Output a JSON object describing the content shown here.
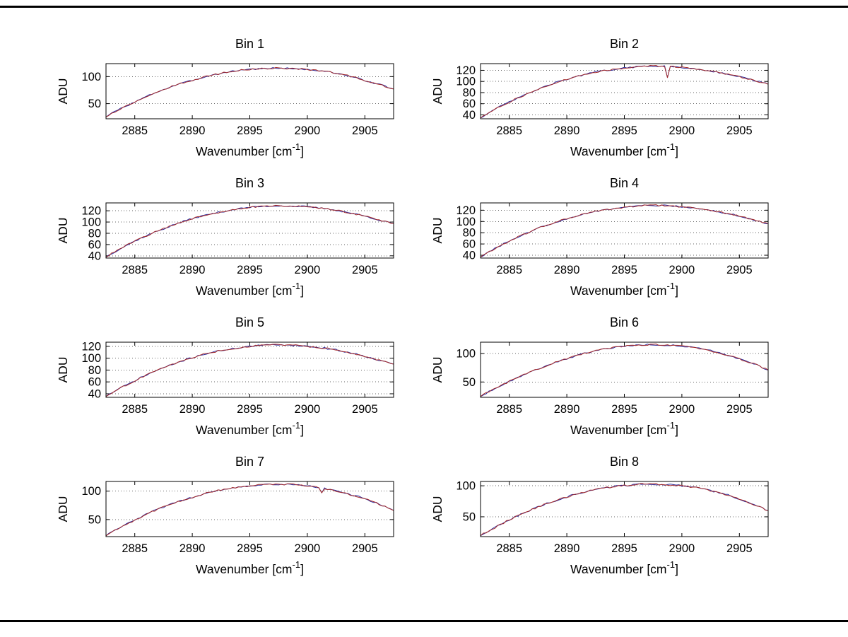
{
  "figure": {
    "background": "#ffffff",
    "frame_color": "#000000"
  },
  "chart_data": [
    {
      "type": "line",
      "title": "Bin 1",
      "ylabel": "ADU",
      "xlabel": {
        "base": "Wavenumber [cm",
        "sup": "-1",
        "end": "]"
      },
      "xlim": [
        2882.5,
        2907.5
      ],
      "xticks": [
        2885,
        2890,
        2895,
        2900,
        2905
      ],
      "ylim": [
        22,
        124
      ],
      "yticks": [
        50,
        100
      ],
      "grid": "dotted-horizontal",
      "legend": "none",
      "x_start": 2882.5,
      "x_step": 1,
      "noise": 1.3,
      "series": [
        {
          "name": "trace-blue",
          "color": "#2a2a9a"
        },
        {
          "name": "trace-red",
          "color": "#a52a2a"
        }
      ],
      "values": [
        26,
        38,
        48,
        58,
        68,
        76,
        84,
        90,
        96,
        102,
        106,
        110,
        113,
        114,
        115,
        116,
        115,
        114,
        112,
        110,
        106,
        102,
        96,
        90,
        84,
        77
      ]
    },
    {
      "type": "line",
      "title": "Bin 2",
      "ylabel": "ADU",
      "xlabel": {
        "base": "Wavenumber [cm",
        "sup": "-1",
        "end": "]"
      },
      "xlim": [
        2882.5,
        2907.5
      ],
      "xticks": [
        2885,
        2890,
        2895,
        2900,
        2905
      ],
      "ylim": [
        33,
        132
      ],
      "yticks": [
        40,
        60,
        80,
        100,
        120
      ],
      "grid": "dotted-horizontal",
      "legend": "none",
      "x_start": 2882.5,
      "x_step": 1,
      "noise": 1.3,
      "artifact": {
        "x": 2898.7,
        "value": 107
      },
      "series": [
        {
          "name": "trace-blue",
          "color": "#2a2a9a"
        },
        {
          "name": "trace-red",
          "color": "#a52a2a"
        }
      ],
      "values": [
        35,
        47,
        58,
        68,
        77,
        86,
        94,
        101,
        107,
        112,
        117,
        120,
        123,
        125,
        127,
        128,
        127,
        126,
        124,
        122,
        119,
        115,
        111,
        106,
        101,
        95
      ]
    },
    {
      "type": "line",
      "title": "Bin 3",
      "ylabel": "ADU",
      "xlabel": {
        "base": "Wavenumber [cm",
        "sup": "-1",
        "end": "]"
      },
      "xlim": [
        2882.5,
        2907.5
      ],
      "xticks": [
        2885,
        2890,
        2895,
        2900,
        2905
      ],
      "ylim": [
        36,
        134
      ],
      "yticks": [
        40,
        60,
        80,
        100,
        120
      ],
      "grid": "dotted-horizontal",
      "legend": "none",
      "x_start": 2882.5,
      "x_step": 1,
      "noise": 1.3,
      "series": [
        {
          "name": "trace-blue",
          "color": "#2a2a9a"
        },
        {
          "name": "trace-red",
          "color": "#a52a2a"
        }
      ],
      "values": [
        38,
        50,
        61,
        71,
        80,
        88,
        96,
        103,
        109,
        114,
        118,
        122,
        125,
        127,
        128,
        129,
        128,
        128,
        126,
        124,
        121,
        117,
        113,
        108,
        102,
        97
      ]
    },
    {
      "type": "line",
      "title": "Bin 4",
      "ylabel": "ADU",
      "xlabel": {
        "base": "Wavenumber [cm",
        "sup": "-1",
        "end": "]"
      },
      "xlim": [
        2882.5,
        2907.5
      ],
      "xticks": [
        2885,
        2890,
        2895,
        2900,
        2905
      ],
      "ylim": [
        35,
        133
      ],
      "yticks": [
        40,
        60,
        80,
        100,
        120
      ],
      "grid": "dotted-horizontal",
      "legend": "none",
      "x_start": 2882.5,
      "x_step": 1,
      "noise": 1.3,
      "series": [
        {
          "name": "trace-blue",
          "color": "#2a2a9a"
        },
        {
          "name": "trace-red",
          "color": "#a52a2a"
        }
      ],
      "values": [
        37,
        49,
        60,
        70,
        79,
        88,
        95,
        102,
        108,
        113,
        118,
        121,
        124,
        126,
        128,
        129,
        128,
        127,
        125,
        123,
        120,
        116,
        112,
        107,
        101,
        96
      ]
    },
    {
      "type": "line",
      "title": "Bin 5",
      "ylabel": "ADU",
      "xlabel": {
        "base": "Wavenumber [cm",
        "sup": "-1",
        "end": "]"
      },
      "xlim": [
        2882.5,
        2907.5
      ],
      "xticks": [
        2885,
        2890,
        2895,
        2900,
        2905
      ],
      "ylim": [
        34,
        127
      ],
      "yticks": [
        40,
        60,
        80,
        100,
        120
      ],
      "grid": "dotted-horizontal",
      "legend": "none",
      "x_start": 2882.5,
      "x_step": 1,
      "noise": 1.3,
      "series": [
        {
          "name": "trace-blue",
          "color": "#2a2a9a"
        },
        {
          "name": "trace-red",
          "color": "#a52a2a"
        }
      ],
      "values": [
        36,
        47,
        57,
        67,
        76,
        84,
        91,
        98,
        104,
        109,
        113,
        116,
        119,
        121,
        122,
        123,
        122,
        121,
        119,
        117,
        114,
        110,
        106,
        101,
        95,
        90
      ]
    },
    {
      "type": "line",
      "title": "Bin 6",
      "ylabel": "ADU",
      "xlabel": {
        "base": "Wavenumber [cm",
        "sup": "-1",
        "end": "]"
      },
      "xlim": [
        2882.5,
        2907.5
      ],
      "xticks": [
        2885,
        2890,
        2895,
        2900,
        2905
      ],
      "ylim": [
        23,
        120
      ],
      "yticks": [
        50,
        100
      ],
      "grid": "dotted-horizontal",
      "legend": "none",
      "x_start": 2882.5,
      "x_step": 1,
      "noise": 1.3,
      "series": [
        {
          "name": "trace-blue",
          "color": "#2a2a9a"
        },
        {
          "name": "trace-red",
          "color": "#a52a2a"
        }
      ],
      "values": [
        25,
        36,
        46,
        56,
        65,
        73,
        81,
        88,
        94,
        100,
        105,
        109,
        112,
        114,
        115,
        116,
        115,
        114,
        112,
        109,
        105,
        100,
        94,
        87,
        80,
        71
      ]
    },
    {
      "type": "line",
      "title": "Bin 7",
      "ylabel": "ADU",
      "xlabel": {
        "base": "Wavenumber [cm",
        "sup": "-1",
        "end": "]"
      },
      "xlim": [
        2882.5,
        2907.5
      ],
      "xticks": [
        2885,
        2890,
        2895,
        2900,
        2905
      ],
      "ylim": [
        20,
        117
      ],
      "yticks": [
        50,
        100
      ],
      "grid": "dotted-horizontal",
      "legend": "none",
      "x_start": 2882.5,
      "x_step": 1,
      "noise": 1.3,
      "artifact": {
        "x": 2901.3,
        "value": 97
      },
      "series": [
        {
          "name": "trace-blue",
          "color": "#2a2a9a"
        },
        {
          "name": "trace-red",
          "color": "#a52a2a"
        }
      ],
      "values": [
        22,
        34,
        44,
        54,
        64,
        72,
        80,
        86,
        92,
        98,
        102,
        106,
        108,
        110,
        112,
        112,
        112,
        110,
        108,
        105,
        100,
        95,
        90,
        83,
        75,
        66
      ]
    },
    {
      "type": "line",
      "title": "Bin 8",
      "ylabel": "ADU",
      "xlabel": {
        "base": "Wavenumber [cm",
        "sup": "-1",
        "end": "]"
      },
      "xlim": [
        2882.5,
        2907.5
      ],
      "xticks": [
        2885,
        2890,
        2895,
        2900,
        2905
      ],
      "ylim": [
        18,
        107
      ],
      "yticks": [
        50,
        100
      ],
      "grid": "dotted-horizontal",
      "legend": "none",
      "x_start": 2882.5,
      "x_step": 1,
      "noise": 1.3,
      "series": [
        {
          "name": "trace-blue",
          "color": "#2a2a9a"
        },
        {
          "name": "trace-red",
          "color": "#a52a2a"
        }
      ],
      "values": [
        20,
        30,
        40,
        50,
        58,
        66,
        73,
        79,
        85,
        90,
        94,
        97,
        100,
        101,
        103,
        103,
        102,
        101,
        99,
        96,
        92,
        88,
        82,
        75,
        68,
        60
      ]
    }
  ]
}
